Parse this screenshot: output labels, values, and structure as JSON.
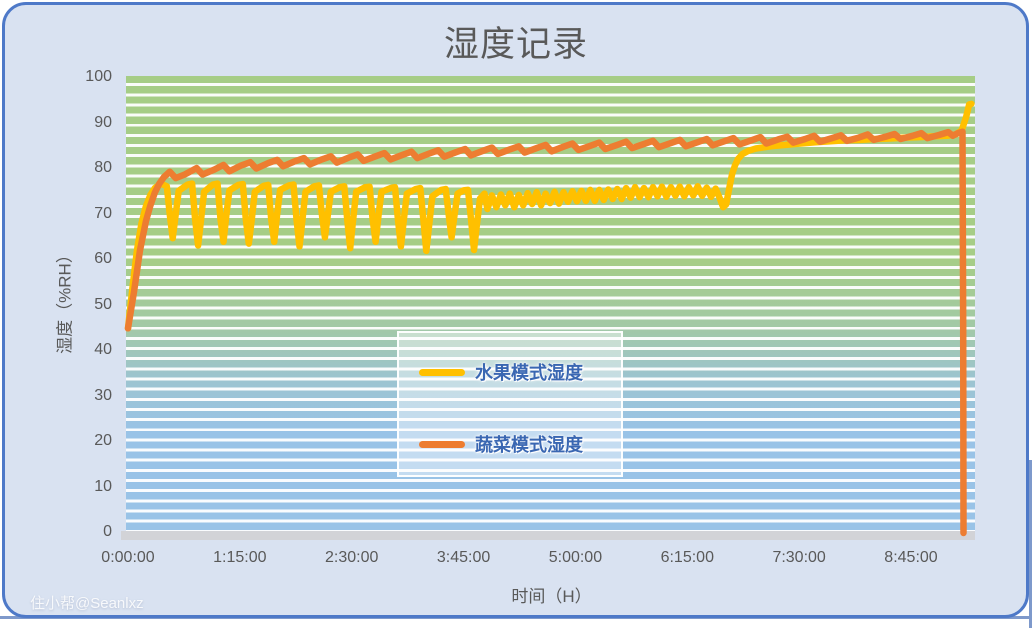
{
  "watermark": "住小帮@Seanlxz",
  "colors": {
    "fruit_line": "#FFC000",
    "vegetable_line": "#ED7D31",
    "legend_text": "#3A67B2",
    "title_text": "#595959",
    "card_background": "#D9E2F1",
    "card_border": "#4E79C8",
    "stripe_green": "#A6CD86",
    "stripe_blue": "#99C3E7"
  },
  "chart_data": {
    "type": "line",
    "title": "湿度记录",
    "xlabel": "时间（H）",
    "ylabel": "湿度（%RH）",
    "x_unit": "minutes",
    "xlim": [
      0,
      568
    ],
    "ylim": [
      0,
      100
    ],
    "grid": "horizontal-stripes",
    "legend_position": "center",
    "y_ticks": [
      0,
      10,
      20,
      30,
      40,
      50,
      60,
      70,
      80,
      90,
      100
    ],
    "x_tick_labels": [
      "0:00:00",
      "1:15:00",
      "2:30:00",
      "3:45:00",
      "5:00:00",
      "6:15:00",
      "7:30:00",
      "8:45:00"
    ],
    "x_tick_minutes": [
      0,
      75,
      150,
      225,
      300,
      375,
      450,
      525
    ],
    "series": [
      {
        "name": "水果模式湿度",
        "color": "#FFC000",
        "points": [
          [
            0,
            45
          ],
          [
            3,
            54
          ],
          [
            6,
            62
          ],
          [
            9,
            68
          ],
          [
            12,
            71.8
          ],
          [
            15,
            74.3
          ],
          [
            18,
            75.8
          ],
          [
            22,
            76.8
          ],
          [
            26,
            76.2
          ],
          [
            28,
            70
          ],
          [
            30,
            64.8
          ],
          [
            32,
            70
          ],
          [
            34,
            75.2
          ],
          [
            40,
            76.6
          ],
          [
            43,
            76.8
          ],
          [
            45,
            69
          ],
          [
            47,
            63.2
          ],
          [
            49,
            69
          ],
          [
            51,
            75
          ],
          [
            57,
            76.6
          ],
          [
            60,
            76.8
          ],
          [
            62,
            69
          ],
          [
            64,
            64
          ],
          [
            66,
            70
          ],
          [
            68,
            75.3
          ],
          [
            74,
            76.5
          ],
          [
            77,
            76.7
          ],
          [
            79,
            69
          ],
          [
            81,
            63.6
          ],
          [
            83,
            69
          ],
          [
            85,
            75
          ],
          [
            91,
            76.3
          ],
          [
            94,
            76.5
          ],
          [
            96,
            69
          ],
          [
            98,
            64
          ],
          [
            100,
            70
          ],
          [
            102,
            75.4
          ],
          [
            108,
            76.4
          ],
          [
            111,
            76.6
          ],
          [
            113,
            69
          ],
          [
            115,
            63
          ],
          [
            117,
            69
          ],
          [
            119,
            75
          ],
          [
            125,
            76.2
          ],
          [
            128,
            76.4
          ],
          [
            130,
            70
          ],
          [
            132,
            65
          ],
          [
            134,
            70
          ],
          [
            136,
            75
          ],
          [
            142,
            76
          ],
          [
            145,
            76.2
          ],
          [
            147,
            69
          ],
          [
            149,
            62.6
          ],
          [
            151,
            69
          ],
          [
            153,
            75
          ],
          [
            159,
            76
          ],
          [
            162,
            76.1
          ],
          [
            164,
            69
          ],
          [
            166,
            64
          ],
          [
            168,
            70
          ],
          [
            170,
            75
          ],
          [
            176,
            75.8
          ],
          [
            179,
            76
          ],
          [
            181,
            69
          ],
          [
            183,
            63
          ],
          [
            185,
            69
          ],
          [
            187,
            74.6
          ],
          [
            193,
            75.6
          ],
          [
            196,
            75.8
          ],
          [
            198,
            69
          ],
          [
            200,
            62
          ],
          [
            202,
            68
          ],
          [
            204,
            74
          ],
          [
            210,
            75.4
          ],
          [
            213,
            75.6
          ],
          [
            215,
            70
          ],
          [
            217,
            65
          ],
          [
            219,
            70
          ],
          [
            221,
            74.6
          ],
          [
            225,
            75.3
          ],
          [
            228,
            75.4
          ],
          [
            230,
            69
          ],
          [
            232,
            62.2
          ],
          [
            234,
            68
          ],
          [
            236,
            73.5
          ],
          [
            239,
            74.6
          ],
          [
            241,
            71.2
          ],
          [
            244,
            74.2
          ],
          [
            247,
            71.6
          ],
          [
            250,
            74.4
          ],
          [
            253,
            72
          ],
          [
            256,
            74.6
          ],
          [
            259,
            71.6
          ],
          [
            262,
            74.3
          ],
          [
            265,
            72
          ],
          [
            268,
            74.7
          ],
          [
            271,
            72.3
          ],
          [
            274,
            74.9
          ],
          [
            277,
            72
          ],
          [
            280,
            74.6
          ],
          [
            283,
            72.5
          ],
          [
            286,
            75
          ],
          [
            289,
            72.4
          ],
          [
            292,
            74.9
          ],
          [
            295,
            72.8
          ],
          [
            298,
            75.1
          ],
          [
            301,
            72.9
          ],
          [
            304,
            75.2
          ],
          [
            307,
            73
          ],
          [
            310,
            75.4
          ],
          [
            313,
            73
          ],
          [
            316,
            75.4
          ],
          [
            319,
            73.2
          ],
          [
            322,
            75.5
          ],
          [
            325,
            73.4
          ],
          [
            328,
            75.6
          ],
          [
            331,
            73.4
          ],
          [
            334,
            75.8
          ],
          [
            337,
            73.7
          ],
          [
            340,
            76
          ],
          [
            343,
            73.8
          ],
          [
            346,
            75.8
          ],
          [
            349,
            73.8
          ],
          [
            352,
            76
          ],
          [
            355,
            74
          ],
          [
            358,
            76.1
          ],
          [
            361,
            73.9
          ],
          [
            364,
            76
          ],
          [
            367,
            74.1
          ],
          [
            370,
            76.1
          ],
          [
            373,
            74
          ],
          [
            376,
            76
          ],
          [
            379,
            74.2
          ],
          [
            382,
            76.2
          ],
          [
            385,
            74.1
          ],
          [
            388,
            75.9
          ],
          [
            391,
            73.9
          ],
          [
            394,
            75.7
          ],
          [
            397,
            73.4
          ],
          [
            399,
            71.6
          ],
          [
            401,
            72.2
          ],
          [
            403,
            75.5
          ],
          [
            405,
            78.8
          ],
          [
            407,
            80.8
          ],
          [
            409,
            82.2
          ],
          [
            412,
            83.3
          ],
          [
            416,
            84
          ],
          [
            421,
            84.5
          ],
          [
            431,
            85
          ],
          [
            441,
            85.3
          ],
          [
            451,
            85.6
          ],
          [
            461,
            85.9
          ],
          [
            471,
            86.1
          ],
          [
            481,
            86.3
          ],
          [
            491,
            86.4
          ],
          [
            501,
            86.6
          ],
          [
            511,
            86.7
          ],
          [
            521,
            86.9
          ],
          [
            531,
            87
          ],
          [
            541,
            87.2
          ],
          [
            549,
            87.3
          ],
          [
            555,
            87.6
          ],
          [
            559,
            88.5
          ],
          [
            562,
            91.5
          ],
          [
            564,
            94.2
          ],
          [
            565.5,
            94.3
          ]
        ]
      },
      {
        "name": "蔬菜模式湿度",
        "color": "#ED7D31",
        "points": [
          [
            0,
            45
          ],
          [
            4,
            53
          ],
          [
            8,
            62
          ],
          [
            12,
            68.5
          ],
          [
            15,
            72
          ],
          [
            18,
            74.8
          ],
          [
            21,
            76.8
          ],
          [
            24,
            78.2
          ],
          [
            28,
            79.4
          ],
          [
            32,
            78
          ],
          [
            38,
            78.8
          ],
          [
            46,
            80.2
          ],
          [
            50,
            78.8
          ],
          [
            58,
            79.9
          ],
          [
            64,
            80.9
          ],
          [
            68,
            79.5
          ],
          [
            76,
            80.8
          ],
          [
            82,
            81.5
          ],
          [
            86,
            80.1
          ],
          [
            94,
            81.3
          ],
          [
            100,
            82
          ],
          [
            104,
            80.6
          ],
          [
            112,
            81.7
          ],
          [
            118,
            82.4
          ],
          [
            122,
            81
          ],
          [
            130,
            82.1
          ],
          [
            136,
            82.8
          ],
          [
            140,
            81.4
          ],
          [
            148,
            82.5
          ],
          [
            154,
            83.2
          ],
          [
            158,
            81.8
          ],
          [
            166,
            82.8
          ],
          [
            172,
            83.5
          ],
          [
            176,
            82.1
          ],
          [
            184,
            83.1
          ],
          [
            190,
            83.8
          ],
          [
            194,
            82.4
          ],
          [
            202,
            83.4
          ],
          [
            208,
            84.1
          ],
          [
            212,
            82.7
          ],
          [
            220,
            83.7
          ],
          [
            226,
            84.4
          ],
          [
            230,
            83
          ],
          [
            238,
            84
          ],
          [
            244,
            84.7
          ],
          [
            248,
            83.3
          ],
          [
            256,
            84.3
          ],
          [
            262,
            85
          ],
          [
            266,
            83.6
          ],
          [
            274,
            84.6
          ],
          [
            280,
            85.3
          ],
          [
            284,
            83.9
          ],
          [
            292,
            84.9
          ],
          [
            298,
            85.6
          ],
          [
            302,
            84.2
          ],
          [
            310,
            85.1
          ],
          [
            316,
            85.8
          ],
          [
            320,
            84.4
          ],
          [
            328,
            85.3
          ],
          [
            334,
            86
          ],
          [
            338,
            84.6
          ],
          [
            346,
            85.5
          ],
          [
            352,
            86.2
          ],
          [
            356,
            84.8
          ],
          [
            364,
            85.7
          ],
          [
            370,
            86.4
          ],
          [
            374,
            85
          ],
          [
            382,
            85.9
          ],
          [
            388,
            86.6
          ],
          [
            392,
            85.2
          ],
          [
            400,
            86.1
          ],
          [
            406,
            86.8
          ],
          [
            410,
            85.4
          ],
          [
            418,
            86.3
          ],
          [
            424,
            87
          ],
          [
            428,
            85.6
          ],
          [
            436,
            86.5
          ],
          [
            442,
            87.1
          ],
          [
            446,
            85.8
          ],
          [
            454,
            86.6
          ],
          [
            460,
            87.3
          ],
          [
            464,
            86
          ],
          [
            472,
            86.8
          ],
          [
            478,
            87.4
          ],
          [
            482,
            86.2
          ],
          [
            490,
            86.9
          ],
          [
            496,
            87.6
          ],
          [
            500,
            86.4
          ],
          [
            508,
            87.1
          ],
          [
            514,
            87.7
          ],
          [
            518,
            86.6
          ],
          [
            526,
            87.3
          ],
          [
            532,
            87.9
          ],
          [
            536,
            86.8
          ],
          [
            544,
            87.5
          ],
          [
            550,
            88.1
          ],
          [
            553,
            87.3
          ],
          [
            556,
            87.8
          ],
          [
            559.5,
            88.2
          ],
          [
            560,
            45
          ],
          [
            560.2,
            0
          ]
        ]
      }
    ]
  }
}
